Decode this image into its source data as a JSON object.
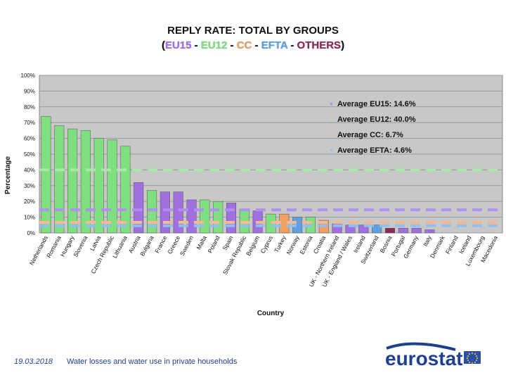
{
  "title": {
    "line1": "REPLY RATE: TOTAL BY GROUPS",
    "open": "(",
    "close": ")",
    "sep": " - ",
    "groups": [
      {
        "label": "EU15",
        "color": "#a070e0"
      },
      {
        "label": "EU12",
        "color": "#80e080"
      },
      {
        "label": "CC",
        "color": "#f0a060"
      },
      {
        "label": "EFTA",
        "color": "#60a0e0"
      },
      {
        "label": "OTHERS",
        "color": "#8a2a58"
      }
    ]
  },
  "footer": {
    "date": "19.03.2018",
    "text": "Water losses and water use in private households",
    "logo": "eurostat"
  },
  "chart_data": {
    "type": "bar",
    "ylabel": "Percentage",
    "xlabel": "Country",
    "ylim": [
      0,
      100
    ],
    "yticks": [
      "0%",
      "10%",
      "20%",
      "30%",
      "40%",
      "50%",
      "60%",
      "70%",
      "80%",
      "90%",
      "100%"
    ],
    "categories": [
      "Netherlands",
      "Romania",
      "Hungary",
      "Slovenia",
      "Latvia",
      "Czech Republic",
      "Lithuania",
      "Austria",
      "Bulgaria",
      "France",
      "Greece",
      "Sweden",
      "Malta",
      "Poland",
      "Spain",
      "Slovak Republic",
      "Belgium",
      "Cyprus",
      "Turkey",
      "Norway",
      "Estonia",
      "Croatia",
      "UK - Northern Ireland",
      "UK - England / Wales",
      "Ireland",
      "Switzerland",
      "Bosnia",
      "Portugal",
      "Germany",
      "Italy",
      "Denmark",
      "Finland",
      "Iceland",
      "Luxembourg",
      "Macedonia"
    ],
    "values": [
      74,
      68,
      66,
      65,
      60,
      59,
      55,
      32,
      27,
      26,
      26,
      21,
      21,
      20,
      19,
      15,
      14,
      12,
      12,
      10,
      10,
      8,
      6,
      5,
      5,
      5,
      3,
      3,
      3,
      2,
      0,
      0,
      0,
      0,
      0
    ],
    "groups": [
      "EU12",
      "EU12",
      "EU12",
      "EU12",
      "EU12",
      "EU12",
      "EU12",
      "EU15",
      "EU12",
      "EU15",
      "EU15",
      "EU15",
      "EU12",
      "EU12",
      "EU15",
      "EU12",
      "EU15",
      "EU12",
      "CC",
      "EFTA",
      "EU12",
      "CC",
      "EU15",
      "EU15",
      "EU15",
      "EFTA",
      "OTHERS",
      "EU15",
      "EU15",
      "EU15",
      "EU15",
      "EU15",
      "EFTA",
      "EU15",
      "CC"
    ],
    "group_colors": {
      "EU15": "#a070e0",
      "EU12": "#80e080",
      "CC": "#f0a060",
      "EFTA": "#60a0e0",
      "OTHERS": "#8a2a58"
    },
    "averages": [
      {
        "label": "Average EU15: 14.6%",
        "value": 14.6,
        "color": "#b090f0"
      },
      {
        "label": "Average EU12: 40.0%",
        "value": 40.0,
        "color": "#a8e8a8"
      },
      {
        "label": "Average CC: 6.7%",
        "value": 6.7,
        "color": "#f8b890"
      },
      {
        "label": "Average EFTA: 4.6%",
        "value": 4.6,
        "color": "#90c0f0"
      }
    ],
    "grid": true,
    "plot_background": "#c8c8c8"
  }
}
